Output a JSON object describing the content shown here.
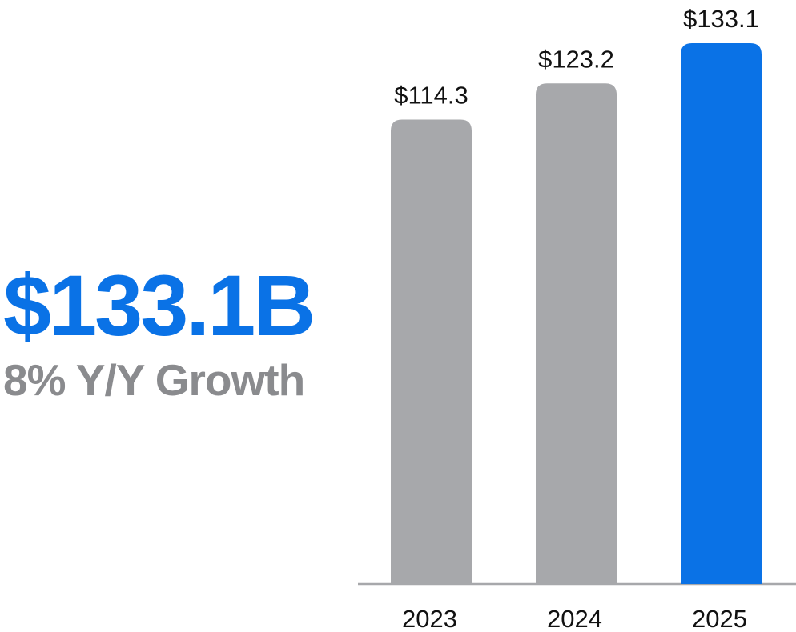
{
  "headline": {
    "value": "$133.1B",
    "growth": "8% Y/Y Growth",
    "value_color": "#0a72e6",
    "growth_color": "#8a8b8e"
  },
  "chart_data": {
    "type": "bar",
    "categories": [
      "2023",
      "2024",
      "2025"
    ],
    "values": [
      114.3,
      123.2,
      133.1
    ],
    "value_labels": [
      "$114.3",
      "$123.2",
      "$133.1"
    ],
    "bar_colors": [
      "#a7a8ab",
      "#a7a8ab",
      "#0a72e6"
    ],
    "axis_color": "#a7a8ab",
    "title": "",
    "xlabel": "",
    "ylabel": "",
    "ylim": [
      0,
      133.1
    ],
    "grid": false,
    "legend": "none"
  }
}
